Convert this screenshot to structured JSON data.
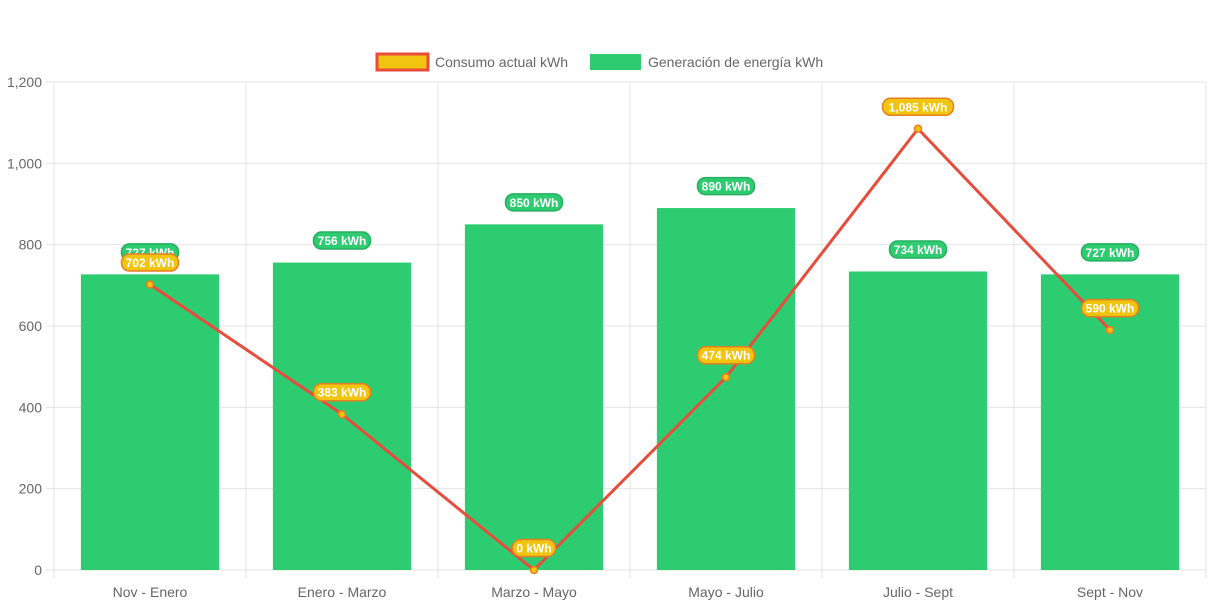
{
  "chart_data": {
    "type": "bar",
    "categories": [
      "Nov - Enero",
      "Enero - Marzo",
      "Marzo - Mayo",
      "Mayo - Julio",
      "Julio - Sept",
      "Sept - Nov"
    ],
    "series": [
      {
        "name": "Generación de energía kWh",
        "type": "bar",
        "values": [
          727,
          756,
          850,
          890,
          734,
          727
        ],
        "labels": [
          "727 kWh",
          "756 kWh",
          "850 kWh",
          "890 kWh",
          "734 kWh",
          "727 kWh"
        ],
        "color": "#2ecc71"
      },
      {
        "name": "Consumo actual kWh",
        "type": "line",
        "values": [
          702,
          383,
          0,
          474,
          1085,
          590
        ],
        "labels": [
          "702 kWh",
          "383 kWh",
          "0 kWh",
          "474 kWh",
          "1,085 kWh",
          "590 kWh"
        ],
        "color": "#e74c3c",
        "point_color": "#f1c40f"
      }
    ],
    "y_ticks": [
      "0",
      "200",
      "400",
      "600",
      "800",
      "1,000",
      "1,200"
    ],
    "ylim": [
      0,
      1200
    ],
    "grid": true,
    "legend_position": "top-center"
  }
}
